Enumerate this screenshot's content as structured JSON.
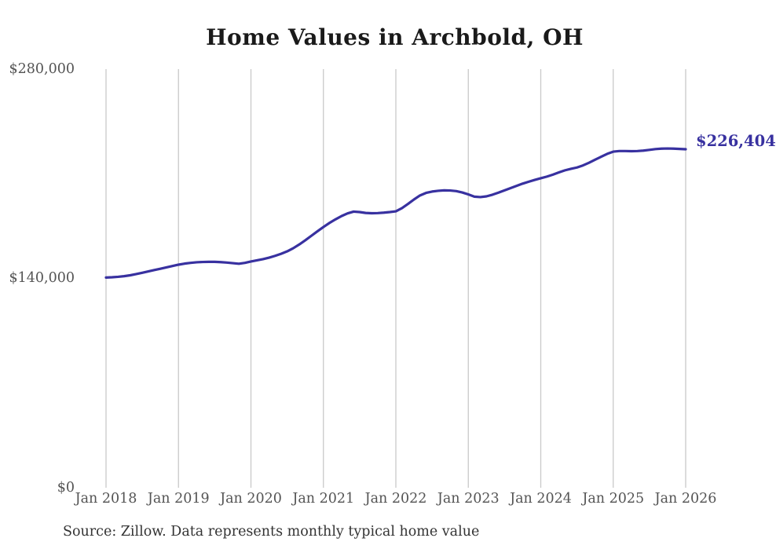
{
  "chart": {
    "title": "Home Values in Archbold, OH",
    "end_label": "$226,404",
    "source": "Source: Zillow. Data represents monthly typical home value"
  },
  "chart_data": {
    "type": "line",
    "title": "Home Values in Archbold, OH",
    "series_name": "Typical home value",
    "frequency": "monthly",
    "start_month": "2018-01",
    "end_month": "2026-01",
    "values": [
      140600,
      140800,
      141100,
      141500,
      142100,
      142900,
      143800,
      144700,
      145600,
      146500,
      147400,
      148300,
      149200,
      149900,
      150400,
      150800,
      151000,
      151100,
      151100,
      150900,
      150600,
      150200,
      149800,
      150400,
      151300,
      152100,
      152900,
      153900,
      155100,
      156500,
      158100,
      160200,
      162700,
      165500,
      168500,
      171500,
      174400,
      177100,
      179500,
      181700,
      183500,
      184700,
      184400,
      183800,
      183600,
      183700,
      184000,
      184400,
      184900,
      187000,
      189800,
      192800,
      195500,
      197200,
      198100,
      198600,
      198900,
      198800,
      198400,
      197500,
      196200,
      194700,
      194400,
      194900,
      196000,
      197400,
      198900,
      200400,
      201900,
      203400,
      204700,
      205900,
      207000,
      208100,
      209400,
      210900,
      212300,
      213300,
      214200,
      215600,
      217400,
      219400,
      221400,
      223300,
      224800,
      225200,
      225200,
      225100,
      225200,
      225500,
      226000,
      226500,
      226800,
      226900,
      226800,
      226600,
      226404
    ],
    "final_value": 226404,
    "final_value_label": "$226,404",
    "x_tick_labels": [
      "Jan 2018",
      "Jan 2019",
      "Jan 2020",
      "Jan 2021",
      "Jan 2022",
      "Jan 2023",
      "Jan 2024",
      "Jan 2025",
      "Jan 2026"
    ],
    "y_tick_labels": [
      "$280,000",
      "$140,000",
      "$0"
    ],
    "y_tick_values": [
      280000,
      140000,
      0
    ],
    "ylim": [
      0,
      280000
    ],
    "grid": "vertical-only",
    "legend": "none",
    "line_color": "#3831a0",
    "grid_color": "#c9c9c9",
    "tick_label_color": "#545454",
    "title_color": "#1a1a1a",
    "source_color": "#333333"
  }
}
